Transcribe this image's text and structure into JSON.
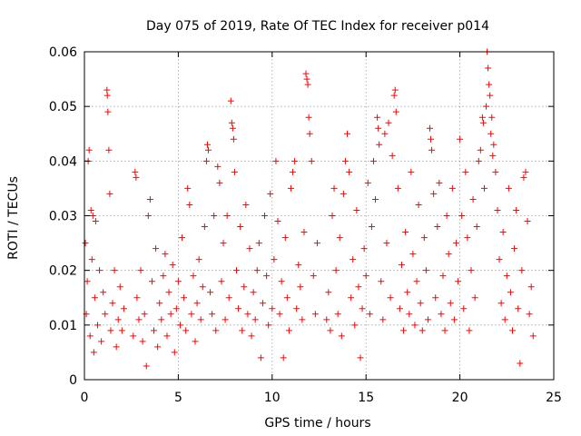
{
  "chart_data": {
    "type": "scatter",
    "title": "Day 075 of 2019, Rate Of TEC Index for receiver p014",
    "xlabel": "GPS time / hours",
    "ylabel": "ROTI / TECUs",
    "xlim": [
      0,
      25
    ],
    "ylim": [
      0,
      0.06
    ],
    "x_ticks": [
      0,
      5,
      10,
      15,
      20,
      25
    ],
    "x_tick_labels": [
      "0",
      "5",
      "10",
      "15",
      "20",
      "25"
    ],
    "y_ticks": [
      0,
      0.01,
      0.02,
      0.03,
      0.04,
      0.05,
      0.06
    ],
    "y_tick_labels": [
      "0",
      "0.01",
      "0.02",
      "0.03",
      "0.04",
      "0.05",
      "0.06"
    ],
    "grid": true,
    "marker": "+",
    "series": [
      {
        "name": "ROTI",
        "color": "#ff0000",
        "points": [
          [
            0.05,
            0.025
          ],
          [
            0.1,
            0.012
          ],
          [
            0.15,
            0.018
          ],
          [
            0.2,
            0.04
          ],
          [
            0.25,
            0.042
          ],
          [
            0.3,
            0.008
          ],
          [
            0.35,
            0.031
          ],
          [
            0.4,
            0.022
          ],
          [
            0.45,
            0.03
          ],
          [
            0.5,
            0.005
          ],
          [
            0.55,
            0.015
          ],
          [
            0.6,
            0.029
          ],
          [
            0.7,
            0.01
          ],
          [
            0.8,
            0.02
          ],
          [
            0.9,
            0.007
          ],
          [
            1.0,
            0.016
          ],
          [
            1.1,
            0.012
          ],
          [
            1.2,
            0.053
          ],
          [
            1.22,
            0.052
          ],
          [
            1.25,
            0.049
          ],
          [
            1.3,
            0.042
          ],
          [
            1.35,
            0.034
          ],
          [
            1.4,
            0.009
          ],
          [
            1.5,
            0.014
          ],
          [
            1.6,
            0.02
          ],
          [
            1.7,
            0.006
          ],
          [
            1.8,
            0.011
          ],
          [
            1.9,
            0.017
          ],
          [
            2.0,
            0.009
          ],
          [
            2.1,
            0.013
          ],
          [
            2.6,
            0.008
          ],
          [
            2.7,
            0.038
          ],
          [
            2.75,
            0.037
          ],
          [
            2.8,
            0.015
          ],
          [
            2.9,
            0.011
          ],
          [
            3.0,
            0.02
          ],
          [
            3.1,
            0.007
          ],
          [
            3.2,
            0.012
          ],
          [
            3.3,
            0.0025
          ],
          [
            3.4,
            0.03
          ],
          [
            3.5,
            0.033
          ],
          [
            3.6,
            0.018
          ],
          [
            3.7,
            0.009
          ],
          [
            3.8,
            0.024
          ],
          [
            3.9,
            0.006
          ],
          [
            4.0,
            0.014
          ],
          [
            4.1,
            0.011
          ],
          [
            4.2,
            0.019
          ],
          [
            4.3,
            0.023
          ],
          [
            4.4,
            0.008
          ],
          [
            4.5,
            0.016
          ],
          [
            4.6,
            0.012
          ],
          [
            4.7,
            0.021
          ],
          [
            4.8,
            0.005
          ],
          [
            4.9,
            0.013
          ],
          [
            5.0,
            0.018
          ],
          [
            5.1,
            0.01
          ],
          [
            5.2,
            0.026
          ],
          [
            5.3,
            0.015
          ],
          [
            5.4,
            0.009
          ],
          [
            5.5,
            0.035
          ],
          [
            5.6,
            0.032
          ],
          [
            5.7,
            0.012
          ],
          [
            5.8,
            0.019
          ],
          [
            5.9,
            0.007
          ],
          [
            6.0,
            0.014
          ],
          [
            6.1,
            0.022
          ],
          [
            6.2,
            0.011
          ],
          [
            6.3,
            0.017
          ],
          [
            6.4,
            0.028
          ],
          [
            6.5,
            0.04
          ],
          [
            6.55,
            0.043
          ],
          [
            6.6,
            0.042
          ],
          [
            6.7,
            0.016
          ],
          [
            6.8,
            0.012
          ],
          [
            6.9,
            0.03
          ],
          [
            7.0,
            0.009
          ],
          [
            7.1,
            0.039
          ],
          [
            7.2,
            0.036
          ],
          [
            7.3,
            0.018
          ],
          [
            7.4,
            0.025
          ],
          [
            7.5,
            0.011
          ],
          [
            7.6,
            0.03
          ],
          [
            7.7,
            0.015
          ],
          [
            7.8,
            0.051
          ],
          [
            7.85,
            0.047
          ],
          [
            7.9,
            0.046
          ],
          [
            7.95,
            0.044
          ],
          [
            8.0,
            0.038
          ],
          [
            8.1,
            0.02
          ],
          [
            8.2,
            0.013
          ],
          [
            8.3,
            0.028
          ],
          [
            8.4,
            0.009
          ],
          [
            8.5,
            0.017
          ],
          [
            8.6,
            0.032
          ],
          [
            8.7,
            0.012
          ],
          [
            8.8,
            0.024
          ],
          [
            8.9,
            0.008
          ],
          [
            9.0,
            0.016
          ],
          [
            9.1,
            0.011
          ],
          [
            9.2,
            0.02
          ],
          [
            9.3,
            0.025
          ],
          [
            9.4,
            0.004
          ],
          [
            9.5,
            0.014
          ],
          [
            9.6,
            0.03
          ],
          [
            9.7,
            0.019
          ],
          [
            9.8,
            0.01
          ],
          [
            9.9,
            0.034
          ],
          [
            10.0,
            0.013
          ],
          [
            10.1,
            0.022
          ],
          [
            10.2,
            0.04
          ],
          [
            10.3,
            0.029
          ],
          [
            10.4,
            0.012
          ],
          [
            10.5,
            0.018
          ],
          [
            10.6,
            0.004
          ],
          [
            10.7,
            0.026
          ],
          [
            10.8,
            0.015
          ],
          [
            10.9,
            0.009
          ],
          [
            11.0,
            0.035
          ],
          [
            11.1,
            0.038
          ],
          [
            11.2,
            0.04
          ],
          [
            11.3,
            0.013
          ],
          [
            11.4,
            0.021
          ],
          [
            11.5,
            0.017
          ],
          [
            11.6,
            0.011
          ],
          [
            11.7,
            0.027
          ],
          [
            11.8,
            0.056
          ],
          [
            11.85,
            0.055
          ],
          [
            11.9,
            0.054
          ],
          [
            11.95,
            0.048
          ],
          [
            12.0,
            0.045
          ],
          [
            12.1,
            0.04
          ],
          [
            12.2,
            0.019
          ],
          [
            12.3,
            0.012
          ],
          [
            12.4,
            0.025
          ],
          [
            12.9,
            0.011
          ],
          [
            13.0,
            0.016
          ],
          [
            13.1,
            0.009
          ],
          [
            13.2,
            0.03
          ],
          [
            13.3,
            0.035
          ],
          [
            13.4,
            0.02
          ],
          [
            13.5,
            0.012
          ],
          [
            13.6,
            0.026
          ],
          [
            13.7,
            0.008
          ],
          [
            13.8,
            0.034
          ],
          [
            13.9,
            0.04
          ],
          [
            14.0,
            0.045
          ],
          [
            14.1,
            0.038
          ],
          [
            14.2,
            0.015
          ],
          [
            14.3,
            0.022
          ],
          [
            14.4,
            0.01
          ],
          [
            14.5,
            0.031
          ],
          [
            14.6,
            0.017
          ],
          [
            14.7,
            0.004
          ],
          [
            14.8,
            0.013
          ],
          [
            14.9,
            0.024
          ],
          [
            15.0,
            0.019
          ],
          [
            15.1,
            0.036
          ],
          [
            15.2,
            0.012
          ],
          [
            15.3,
            0.028
          ],
          [
            15.4,
            0.04
          ],
          [
            15.5,
            0.033
          ],
          [
            15.6,
            0.048
          ],
          [
            15.65,
            0.046
          ],
          [
            15.7,
            0.043
          ],
          [
            15.8,
            0.018
          ],
          [
            15.9,
            0.011
          ],
          [
            16.0,
            0.045
          ],
          [
            16.1,
            0.025
          ],
          [
            16.2,
            0.047
          ],
          [
            16.3,
            0.015
          ],
          [
            16.4,
            0.041
          ],
          [
            16.5,
            0.052
          ],
          [
            16.55,
            0.053
          ],
          [
            16.6,
            0.049
          ],
          [
            16.7,
            0.035
          ],
          [
            16.8,
            0.013
          ],
          [
            16.9,
            0.021
          ],
          [
            17.0,
            0.009
          ],
          [
            17.1,
            0.027
          ],
          [
            17.2,
            0.016
          ],
          [
            17.3,
            0.012
          ],
          [
            17.4,
            0.038
          ],
          [
            17.5,
            0.023
          ],
          [
            17.6,
            0.01
          ],
          [
            17.7,
            0.018
          ],
          [
            17.8,
            0.032
          ],
          [
            17.9,
            0.014
          ],
          [
            18.0,
            0.009
          ],
          [
            18.1,
            0.026
          ],
          [
            18.2,
            0.02
          ],
          [
            18.3,
            0.011
          ],
          [
            18.4,
            0.046
          ],
          [
            18.45,
            0.044
          ],
          [
            18.5,
            0.042
          ],
          [
            18.6,
            0.034
          ],
          [
            18.7,
            0.015
          ],
          [
            18.8,
            0.028
          ],
          [
            18.9,
            0.036
          ],
          [
            19.0,
            0.012
          ],
          [
            19.1,
            0.019
          ],
          [
            19.2,
            0.009
          ],
          [
            19.3,
            0.03
          ],
          [
            19.4,
            0.023
          ],
          [
            19.5,
            0.014
          ],
          [
            19.6,
            0.035
          ],
          [
            19.7,
            0.011
          ],
          [
            19.8,
            0.025
          ],
          [
            19.9,
            0.018
          ],
          [
            20.0,
            0.044
          ],
          [
            20.1,
            0.03
          ],
          [
            20.2,
            0.013
          ],
          [
            20.3,
            0.038
          ],
          [
            20.4,
            0.026
          ],
          [
            20.5,
            0.009
          ],
          [
            20.6,
            0.02
          ],
          [
            20.7,
            0.033
          ],
          [
            20.8,
            0.015
          ],
          [
            20.9,
            0.028
          ],
          [
            21.0,
            0.04
          ],
          [
            21.1,
            0.042
          ],
          [
            21.2,
            0.048
          ],
          [
            21.25,
            0.047
          ],
          [
            21.3,
            0.035
          ],
          [
            21.4,
            0.05
          ],
          [
            21.45,
            0.06
          ],
          [
            21.5,
            0.057
          ],
          [
            21.55,
            0.054
          ],
          [
            21.6,
            0.052
          ],
          [
            21.65,
            0.045
          ],
          [
            21.7,
            0.048
          ],
          [
            21.75,
            0.041
          ],
          [
            21.8,
            0.043
          ],
          [
            21.9,
            0.038
          ],
          [
            22.0,
            0.031
          ],
          [
            22.1,
            0.022
          ],
          [
            22.2,
            0.014
          ],
          [
            22.3,
            0.027
          ],
          [
            22.4,
            0.011
          ],
          [
            22.5,
            0.019
          ],
          [
            22.6,
            0.035
          ],
          [
            22.7,
            0.016
          ],
          [
            22.8,
            0.009
          ],
          [
            22.9,
            0.024
          ],
          [
            23.0,
            0.031
          ],
          [
            23.1,
            0.013
          ],
          [
            23.2,
            0.003
          ],
          [
            23.3,
            0.02
          ],
          [
            23.4,
            0.037
          ],
          [
            23.5,
            0.038
          ],
          [
            23.6,
            0.029
          ],
          [
            23.7,
            0.012
          ],
          [
            23.8,
            0.017
          ],
          [
            23.9,
            0.008
          ]
        ]
      }
    ]
  }
}
